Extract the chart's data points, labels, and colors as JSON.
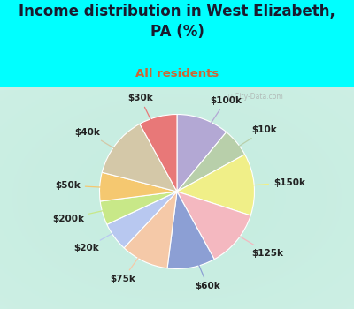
{
  "title": "Income distribution in West Elizabeth,\nPA (%)",
  "subtitle": "All residents",
  "bg_top_color": "#00FFFF",
  "chart_bg_color": "#d8f0e8",
  "segments": [
    {
      "label": "$100k",
      "value": 11,
      "color": "#b3a8d4"
    },
    {
      "label": "$10k",
      "value": 6,
      "color": "#b8cfaa"
    },
    {
      "label": "$150k",
      "value": 13,
      "color": "#f0ef88"
    },
    {
      "label": "$125k",
      "value": 12,
      "color": "#f4b8c0"
    },
    {
      "label": "$60k",
      "value": 10,
      "color": "#8c9fd4"
    },
    {
      "label": "$75k",
      "value": 10,
      "color": "#f5c9a8"
    },
    {
      "label": "$20k",
      "value": 6,
      "color": "#b8c8f0"
    },
    {
      "label": "$200k",
      "value": 5,
      "color": "#c8e888"
    },
    {
      "label": "$50k",
      "value": 6,
      "color": "#f5c870"
    },
    {
      "label": "$40k",
      "value": 13,
      "color": "#d4c8a8"
    },
    {
      "label": "$30k",
      "value": 8,
      "color": "#e87878"
    }
  ],
  "watermark": "City-Data.com",
  "label_fontsize": 7.5,
  "title_fontsize": 12,
  "subtitle_fontsize": 9.5,
  "title_color": "#1a1a2e",
  "subtitle_color": "#cc6633",
  "label_color": "#222222"
}
